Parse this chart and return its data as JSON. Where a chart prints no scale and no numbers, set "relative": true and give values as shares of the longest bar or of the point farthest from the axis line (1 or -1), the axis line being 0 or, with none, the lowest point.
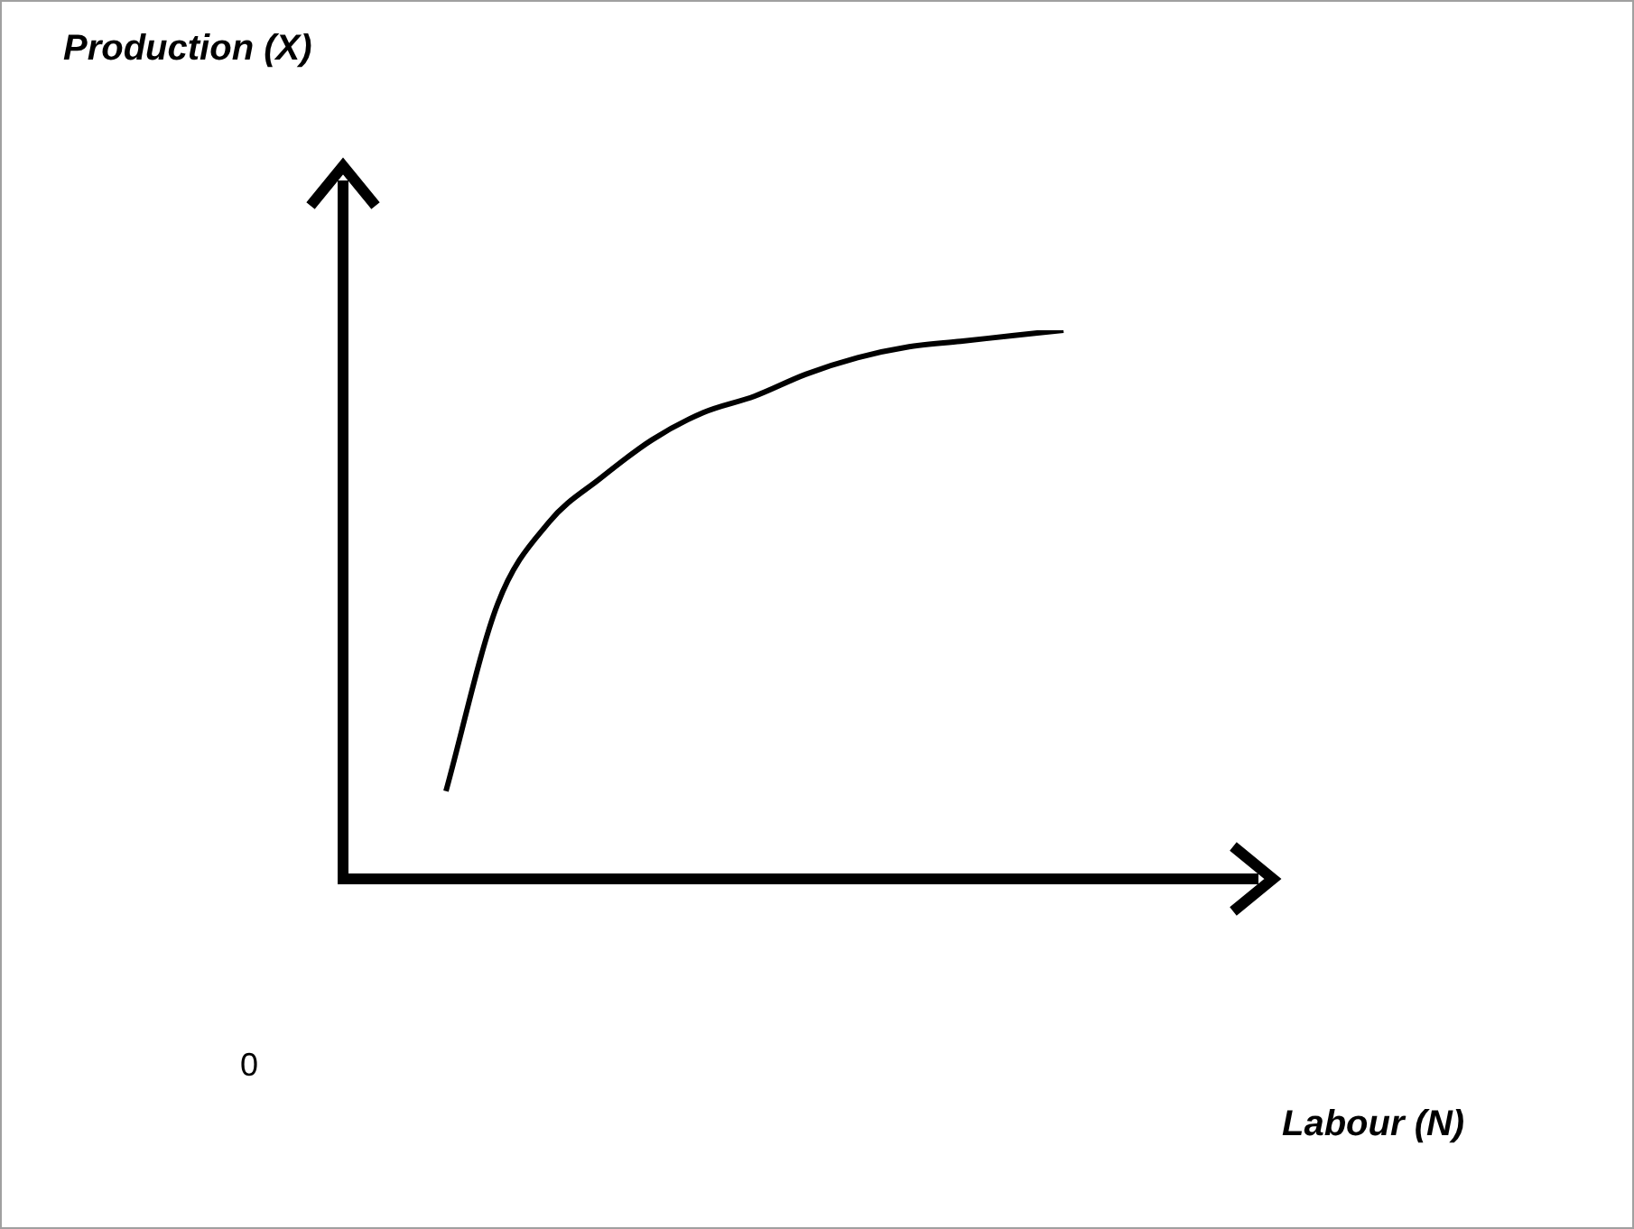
{
  "chart_data": {
    "type": "line",
    "relative": true,
    "annotations": [
      "Production (X)",
      "0",
      "Labour (N)"
    ],
    "color": "#000000",
    "categories": [
      null,
      null,
      null,
      null,
      null,
      null,
      null,
      null,
      null,
      null,
      null,
      null,
      null,
      null,
      null,
      null,
      null,
      null,
      null
    ],
    "values": [
      null,
      null,
      0.16,
      0.5,
      0.65,
      0.73,
      0.8,
      0.85,
      0.88,
      0.92,
      0.95,
      0.97,
      0.98,
      0.99,
      1,
      null,
      null,
      null,
      null
    ]
  }
}
